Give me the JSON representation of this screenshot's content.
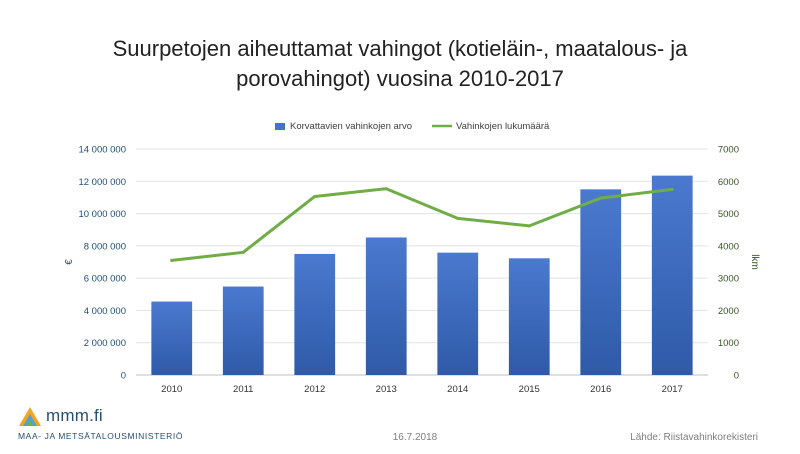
{
  "slide": {
    "title_line1": "Suurpetojen aiheuttamat vahingot (kotieläin-, maatalous- ja",
    "title_line2": "porovahingot) vuosina 2010-2017"
  },
  "footer": {
    "date": "16.7.2018",
    "source": "Lähde: Riistavahinkorekisteri",
    "logo_text": "mmm.fi",
    "logo_subtitle": "MAA- JA METSÄTALOUSMINISTERIÖ"
  },
  "chart_data": {
    "type": "bar",
    "categories": [
      "2010",
      "2011",
      "2012",
      "2013",
      "2014",
      "2015",
      "2016",
      "2017"
    ],
    "series": [
      {
        "name": "Korvattavien vahinkojen arvo",
        "type": "bar",
        "axis": "left",
        "color": "#4472c4",
        "values": [
          4550000,
          5480000,
          7500000,
          8520000,
          7580000,
          7230000,
          11500000,
          12350000
        ]
      },
      {
        "name": "Vahinkojen lukumäärä",
        "type": "line",
        "axis": "right",
        "color": "#70ad47",
        "values": [
          3550,
          3800,
          5530,
          5770,
          4850,
          4620,
          5480,
          5750
        ]
      }
    ],
    "ylabel": "€",
    "y2label": "lkm",
    "ylim": [
      0,
      14000000
    ],
    "y2lim": [
      0,
      7000
    ],
    "yticks": [
      "0",
      "2 000 000",
      "4 000 000",
      "6 000 000",
      "8 000 000",
      "10 000 000",
      "12 000 000",
      "14 000 000"
    ],
    "y2ticks": [
      "0",
      "1000",
      "2000",
      "3000",
      "4000",
      "5000",
      "6000",
      "7000"
    ],
    "grid": true,
    "legend": "top-center",
    "axis_colors": {
      "left": "#1f4e79",
      "right": "#375623"
    }
  }
}
